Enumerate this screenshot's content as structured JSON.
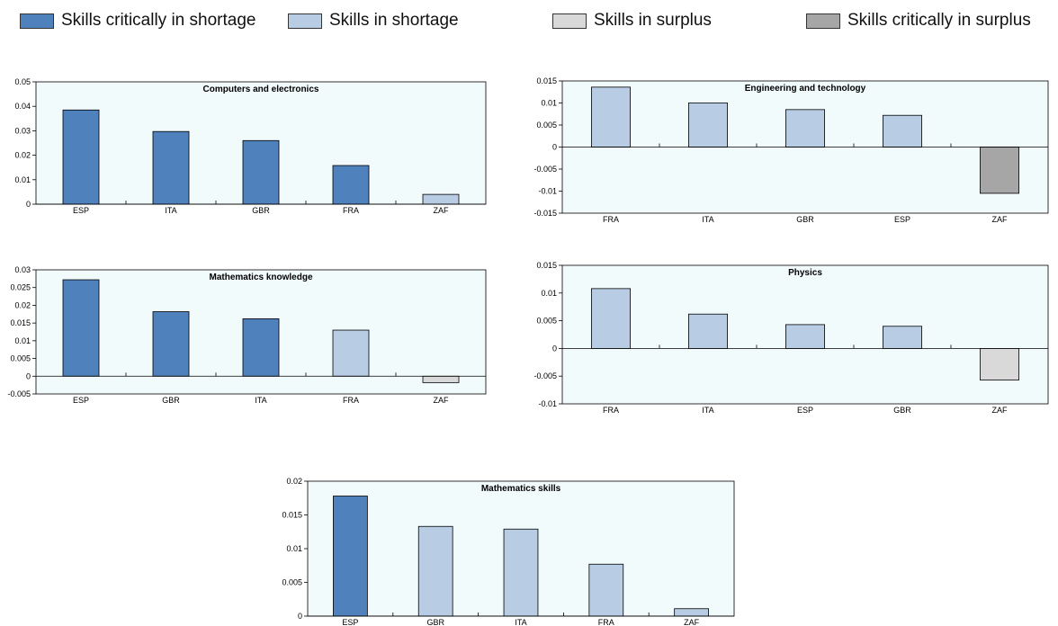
{
  "legend": [
    {
      "label": "Skills critically in shortage",
      "color": "#4F81BD"
    },
    {
      "label": "Skills in shortage",
      "color": "#B8CCE4"
    },
    {
      "label": "Skills in surplus",
      "color": "#D9D9D9"
    },
    {
      "label": "Skills critically in surplus",
      "color": "#A6A6A6"
    }
  ],
  "chart_data": [
    {
      "type": "bar",
      "title": "Computers and electronics",
      "xlabel": "",
      "ylabel": "",
      "categories": [
        "ESP",
        "ITA",
        "GBR",
        "FRA",
        "ZAF"
      ],
      "values": [
        0.0385,
        0.0297,
        0.026,
        0.0158,
        0.004
      ],
      "colors": [
        "#4F81BD",
        "#4F81BD",
        "#4F81BD",
        "#4F81BD",
        "#B8CCE4"
      ],
      "ylim": [
        0,
        0.05
      ],
      "ticks": [
        "0",
        "0.01",
        "0.02",
        "0.03",
        "0.04",
        "0.05"
      ],
      "grid": false
    },
    {
      "type": "bar",
      "title": "Engineering and technology",
      "xlabel": "",
      "ylabel": "",
      "categories": [
        "FRA",
        "ITA",
        "GBR",
        "ESP",
        "ZAF"
      ],
      "values": [
        0.0136,
        0.01,
        0.0085,
        0.0072,
        -0.0105
      ],
      "colors": [
        "#B8CCE4",
        "#B8CCE4",
        "#B8CCE4",
        "#B8CCE4",
        "#A6A6A6"
      ],
      "ylim": [
        -0.015,
        0.015
      ],
      "ticks": [
        "-0.015",
        "-0.01",
        "-0.005",
        "0",
        "0.005",
        "0.01",
        "0.015"
      ],
      "grid": false
    },
    {
      "type": "bar",
      "title": "Mathematics knowledge",
      "xlabel": "",
      "ylabel": "",
      "categories": [
        "ESP",
        "GBR",
        "ITA",
        "FRA",
        "ZAF"
      ],
      "values": [
        0.0272,
        0.0182,
        0.0162,
        0.013,
        -0.0018
      ],
      "colors": [
        "#4F81BD",
        "#4F81BD",
        "#4F81BD",
        "#B8CCE4",
        "#D9D9D9"
      ],
      "ylim": [
        -0.005,
        0.03
      ],
      "ticks": [
        "-0.005",
        "0",
        "0.005",
        "0.01",
        "0.015",
        "0.02",
        "0.025",
        "0.03"
      ],
      "grid": false
    },
    {
      "type": "bar",
      "title": "Physics",
      "xlabel": "",
      "ylabel": "",
      "categories": [
        "FRA",
        "ITA",
        "ESP",
        "GBR",
        "ZAF"
      ],
      "values": [
        0.0108,
        0.0062,
        0.0043,
        0.004,
        -0.0057
      ],
      "colors": [
        "#B8CCE4",
        "#B8CCE4",
        "#B8CCE4",
        "#B8CCE4",
        "#D9D9D9"
      ],
      "ylim": [
        -0.01,
        0.015
      ],
      "ticks": [
        "-0.01",
        "-0.005",
        "0",
        "0.005",
        "0.01",
        "0.015"
      ],
      "grid": false
    },
    {
      "type": "bar",
      "title": "Mathematics skills",
      "xlabel": "",
      "ylabel": "",
      "categories": [
        "ESP",
        "GBR",
        "ITA",
        "FRA",
        "ZAF"
      ],
      "values": [
        0.0178,
        0.0133,
        0.0129,
        0.0077,
        0.0011
      ],
      "colors": [
        "#4F81BD",
        "#B8CCE4",
        "#B8CCE4",
        "#B8CCE4",
        "#B8CCE4"
      ],
      "ylim": [
        0,
        0.02
      ],
      "ticks": [
        "0",
        "0.005",
        "0.01",
        "0.015",
        "0.02"
      ],
      "grid": false
    }
  ]
}
